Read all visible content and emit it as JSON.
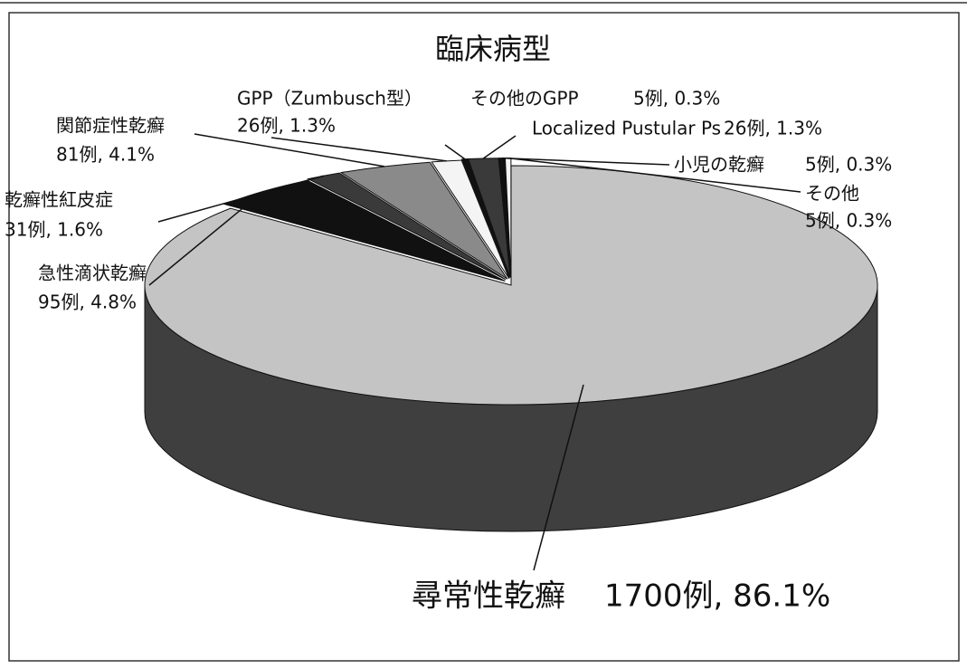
{
  "chart_data": {
    "type": "pie",
    "title": "臨床病型",
    "categories": [
      "尋常性乾癬",
      "急性滴状乾癬",
      "乾癬性紅皮症",
      "関節症性乾癬",
      "GPP（Zumbusch型）",
      "その他のGPP",
      "Localized Pustular Ps",
      "小児の乾癬",
      "その他"
    ],
    "values": [
      1700,
      95,
      31,
      81,
      26,
      5,
      26,
      5,
      5
    ],
    "value_labels": [
      "1700例, 86.1%",
      "95例, 4.8%",
      "31例, 1.6%",
      "81例, 4.1%",
      "26例, 1.3%",
      "5例, 0.3%",
      "26例, 1.3%",
      "5例, 0.3%",
      "5例, 0.3%"
    ],
    "colors": [
      "#c4c4c4",
      "#111111",
      "#3a3a3a",
      "#8a8a8a",
      "#f4f4f4",
      "#111111",
      "#3a3a3a",
      "#111111",
      "#f4f4f4"
    ]
  }
}
